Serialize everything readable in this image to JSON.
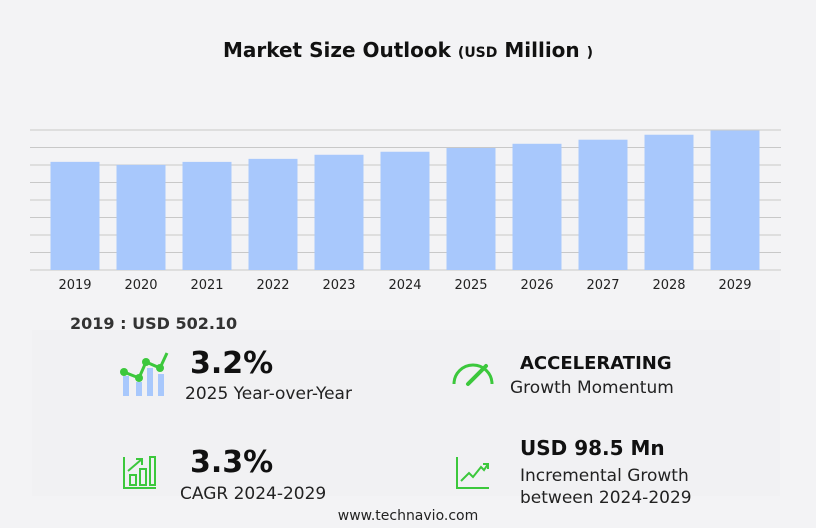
{
  "title": {
    "main": "Market Size Outlook",
    "unit_open": "(",
    "unit_small": "USD",
    "unit_big": "Million",
    "unit_close": ")"
  },
  "chart_data": {
    "type": "bar",
    "title": "Market Size Outlook (USD Million)",
    "categories": [
      "2019",
      "2020",
      "2021",
      "2022",
      "2023",
      "2024",
      "2025",
      "2026",
      "2027",
      "2028",
      "2029"
    ],
    "values": [
      502.1,
      488,
      502,
      516,
      535,
      549,
      566.6,
      586,
      605,
      628,
      647.5
    ],
    "ylim": [
      0,
      650
    ],
    "grid": true,
    "bar_color": "#a8c8fc"
  },
  "base_label": "2019 : USD  502.10",
  "stats": {
    "yoy": {
      "value": "3.2%",
      "label": "2025 Year-over-Year"
    },
    "momentum": {
      "value": "ACCELERATING",
      "label": "Growth Momentum"
    },
    "cagr": {
      "value": "3.3%",
      "label": "CAGR 2024-2029"
    },
    "incremental": {
      "value": "USD 98.5 Mn",
      "label1": "Incremental Growth",
      "label2": "between 2024-2029"
    }
  },
  "colors": {
    "accent": "#3cc83c",
    "bar": "#a8c8fc"
  },
  "footer": "www.technavio.com"
}
